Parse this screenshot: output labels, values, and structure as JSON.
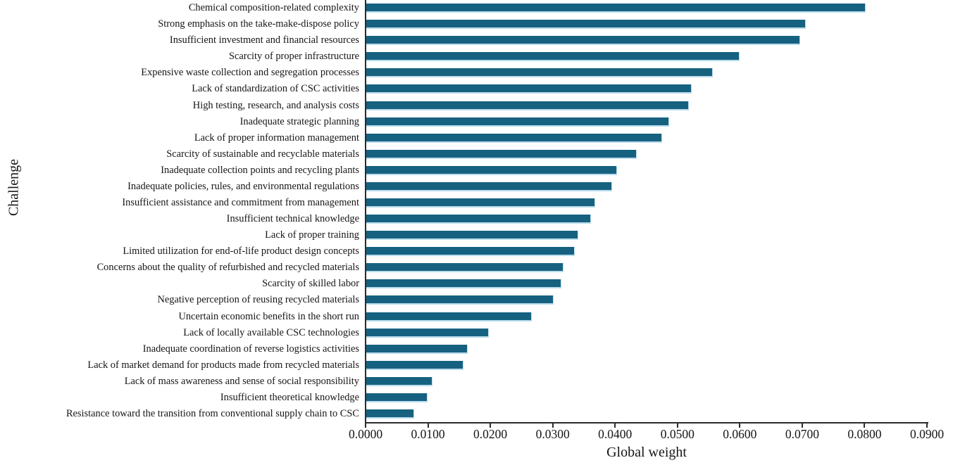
{
  "figure": {
    "background": "#ffffff"
  },
  "chart_data": {
    "type": "bar",
    "orientation": "horizontal",
    "title": "",
    "xlabel": "Global weight",
    "ylabel": "Challenge",
    "xlim": [
      0,
      0.09
    ],
    "xtick_labels": [
      "0.0000",
      "0.0100",
      "0.0200",
      "0.0300",
      "0.0400",
      "0.0500",
      "0.0600",
      "0.0700",
      "0.0800",
      "0.0900"
    ],
    "grid": false,
    "legend": false,
    "bar_color": "#166180",
    "bar_edge_color": "#b9dcec",
    "categories": [
      "Chemical composition-related complexity",
      "Strong emphasis on the take-make-dispose policy",
      "Insufficient investment and financial resources",
      "Scarcity of proper infrastructure",
      "Expensive waste collection and segregation processes",
      "Lack of standardization of CSC activities",
      "High testing, research, and analysis costs",
      "Inadequate strategic planning",
      "Lack of proper information management",
      "Scarcity of sustainable and recyclable materials",
      "Inadequate collection points and recycling plants",
      "Inadequate policies, rules, and environmental regulations",
      "Insufficient assistance and commitment from management",
      "Insufficient technical knowledge",
      "Lack of proper training",
      "Limited utilization for end-of-life product design concepts",
      "Concerns about the quality of refurbished and recycled materials",
      "Scarcity of skilled labor",
      "Negative perception of reusing recycled materials",
      "Uncertain economic benefits in the short run",
      "Lack of locally available CSC technologies",
      "Inadequate coordination of reverse logistics activities",
      "Lack of market demand for products made from recycled materials",
      "Lack of mass awareness and sense of social responsibility",
      "Insufficient theoretical knowledge",
      "Resistance toward the transition from conventional supply chain to CSC"
    ],
    "values": [
      0.08,
      0.0703,
      0.0695,
      0.0597,
      0.0554,
      0.0521,
      0.0516,
      0.0484,
      0.0473,
      0.0432,
      0.0401,
      0.0393,
      0.0366,
      0.0359,
      0.0339,
      0.0333,
      0.0315,
      0.0312,
      0.0299,
      0.0264,
      0.0195,
      0.0162,
      0.0155,
      0.0105,
      0.0097,
      0.0076
    ]
  }
}
